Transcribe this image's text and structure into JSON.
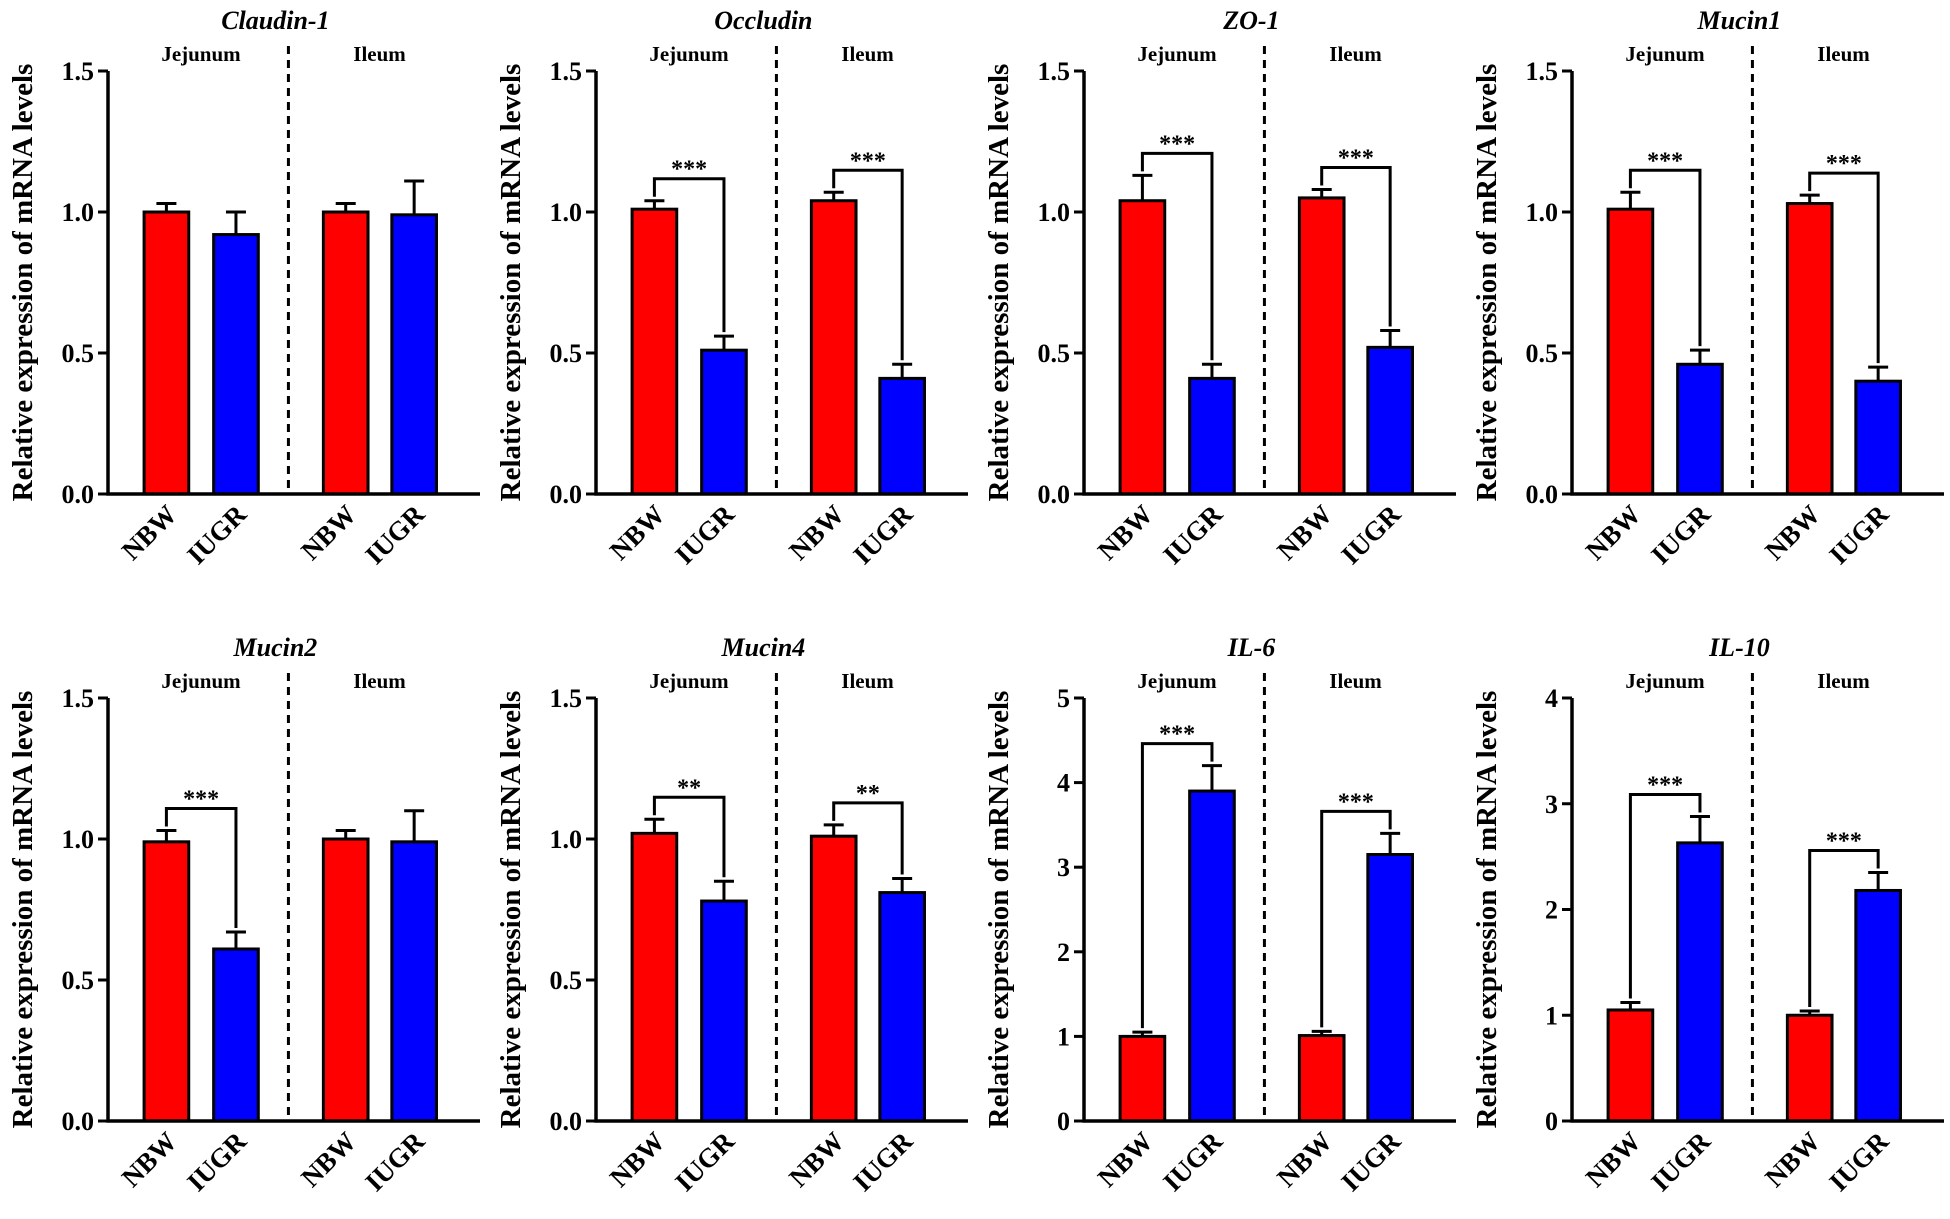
{
  "chart_data": [
    {
      "type": "bar",
      "title": "Claudin-1",
      "y_label": "Relative expression of mRNA levels",
      "groups": [
        "Jejunum",
        "Ileum"
      ],
      "categories": [
        "NBW",
        "IUGR",
        "NBW",
        "IUGR"
      ],
      "values": [
        1.0,
        0.92,
        1.0,
        0.99
      ],
      "errors": [
        0.03,
        0.08,
        0.03,
        0.12
      ],
      "significance": [
        null,
        null,
        null,
        null
      ],
      "colors": [
        "#ff0000",
        "#0000ff",
        "#ff0000",
        "#0000ff"
      ],
      "ylim": [
        0,
        1.5
      ],
      "yticks": [
        {
          "value": 0,
          "label": "0.0"
        },
        {
          "value": 0.5,
          "label": "0.5"
        },
        {
          "value": 1,
          "label": "1.0"
        },
        {
          "value": 1.5,
          "label": "1.5"
        }
      ]
    },
    {
      "type": "bar",
      "title": "Occludin",
      "y_label": "Relative expression of mRNA levels",
      "groups": [
        "Jejunum",
        "Ileum"
      ],
      "categories": [
        "NBW",
        "IUGR",
        "NBW",
        "IUGR"
      ],
      "values": [
        1.01,
        0.51,
        1.04,
        0.41
      ],
      "errors": [
        0.03,
        0.05,
        0.03,
        0.05
      ],
      "significance": [
        null,
        "***",
        null,
        "***"
      ],
      "colors": [
        "#ff0000",
        "#0000ff",
        "#ff0000",
        "#0000ff"
      ],
      "ylim": [
        0,
        1.5
      ],
      "yticks": [
        {
          "value": 0,
          "label": "0.0"
        },
        {
          "value": 0.5,
          "label": "0.5"
        },
        {
          "value": 1,
          "label": "1.0"
        },
        {
          "value": 1.5,
          "label": "1.5"
        }
      ]
    },
    {
      "type": "bar",
      "title": "ZO-1",
      "y_label": "Relative expression of mRNA levels",
      "groups": [
        "Jejunum",
        "Ileum"
      ],
      "categories": [
        "NBW",
        "IUGR",
        "NBW",
        "IUGR"
      ],
      "values": [
        1.04,
        0.41,
        1.05,
        0.52
      ],
      "errors": [
        0.09,
        0.05,
        0.03,
        0.06
      ],
      "significance": [
        null,
        "***",
        null,
        "***"
      ],
      "colors": [
        "#ff0000",
        "#0000ff",
        "#ff0000",
        "#0000ff"
      ],
      "ylim": [
        0,
        1.5
      ],
      "yticks": [
        {
          "value": 0,
          "label": "0.0"
        },
        {
          "value": 0.5,
          "label": "0.5"
        },
        {
          "value": 1,
          "label": "1.0"
        },
        {
          "value": 1.5,
          "label": "1.5"
        }
      ]
    },
    {
      "type": "bar",
      "title": "Mucin1",
      "y_label": "Relative expression of mRNA levels",
      "groups": [
        "Jejunum",
        "Ileum"
      ],
      "categories": [
        "NBW",
        "IUGR",
        "NBW",
        "IUGR"
      ],
      "values": [
        1.01,
        0.46,
        1.03,
        0.4
      ],
      "errors": [
        0.06,
        0.05,
        0.03,
        0.05
      ],
      "significance": [
        null,
        "***",
        null,
        "***"
      ],
      "colors": [
        "#ff0000",
        "#0000ff",
        "#ff0000",
        "#0000ff"
      ],
      "ylim": [
        0,
        1.5
      ],
      "yticks": [
        {
          "value": 0,
          "label": "0.0"
        },
        {
          "value": 0.5,
          "label": "0.5"
        },
        {
          "value": 1,
          "label": "1.0"
        },
        {
          "value": 1.5,
          "label": "1.5"
        }
      ]
    },
    {
      "type": "bar",
      "title": "Mucin2",
      "y_label": "Relative expression of mRNA levels",
      "groups": [
        "Jejunum",
        "Ileum"
      ],
      "categories": [
        "NBW",
        "IUGR",
        "NBW",
        "IUGR"
      ],
      "values": [
        0.99,
        0.61,
        1.0,
        0.99
      ],
      "errors": [
        0.04,
        0.06,
        0.03,
        0.11
      ],
      "significance": [
        null,
        "***",
        null,
        null
      ],
      "colors": [
        "#ff0000",
        "#0000ff",
        "#ff0000",
        "#0000ff"
      ],
      "ylim": [
        0,
        1.5
      ],
      "yticks": [
        {
          "value": 0,
          "label": "0.0"
        },
        {
          "value": 0.5,
          "label": "0.5"
        },
        {
          "value": 1,
          "label": "1.0"
        },
        {
          "value": 1.5,
          "label": "1.5"
        }
      ]
    },
    {
      "type": "bar",
      "title": "Mucin4",
      "y_label": "Relative expression of mRNA levels",
      "groups": [
        "Jejunum",
        "Ileum"
      ],
      "categories": [
        "NBW",
        "IUGR",
        "NBW",
        "IUGR"
      ],
      "values": [
        1.02,
        0.78,
        1.01,
        0.81
      ],
      "errors": [
        0.05,
        0.07,
        0.04,
        0.05
      ],
      "significance": [
        null,
        "**",
        null,
        "**"
      ],
      "colors": [
        "#ff0000",
        "#0000ff",
        "#ff0000",
        "#0000ff"
      ],
      "ylim": [
        0,
        1.5
      ],
      "yticks": [
        {
          "value": 0,
          "label": "0.0"
        },
        {
          "value": 0.5,
          "label": "0.5"
        },
        {
          "value": 1,
          "label": "1.0"
        },
        {
          "value": 1.5,
          "label": "1.5"
        }
      ]
    },
    {
      "type": "bar",
      "title": "IL-6",
      "y_label": "Relative expression of mRNA levels",
      "groups": [
        "Jejunum",
        "Ileum"
      ],
      "categories": [
        "NBW",
        "IUGR",
        "NBW",
        "IUGR"
      ],
      "values": [
        1.0,
        3.9,
        1.01,
        3.15
      ],
      "errors": [
        0.05,
        0.3,
        0.05,
        0.25
      ],
      "significance": [
        null,
        "***",
        null,
        "***"
      ],
      "colors": [
        "#ff0000",
        "#0000ff",
        "#ff0000",
        "#0000ff"
      ],
      "ylim": [
        0,
        5
      ],
      "yticks": [
        0,
        1,
        2,
        3,
        4,
        5
      ]
    },
    {
      "type": "bar",
      "title": "IL-10",
      "y_label": "Relative expression of mRNA levels",
      "groups": [
        "Jejunum",
        "Ileum"
      ],
      "categories": [
        "NBW",
        "IUGR",
        "NBW",
        "IUGR"
      ],
      "values": [
        1.05,
        2.63,
        1.0,
        2.18
      ],
      "errors": [
        0.07,
        0.25,
        0.04,
        0.17
      ],
      "significance": [
        null,
        "***",
        null,
        "***"
      ],
      "colors": [
        "#ff0000",
        "#0000ff",
        "#ff0000",
        "#0000ff"
      ],
      "ylim": [
        0,
        4
      ],
      "yticks": [
        0,
        1,
        2,
        3,
        4
      ]
    }
  ]
}
